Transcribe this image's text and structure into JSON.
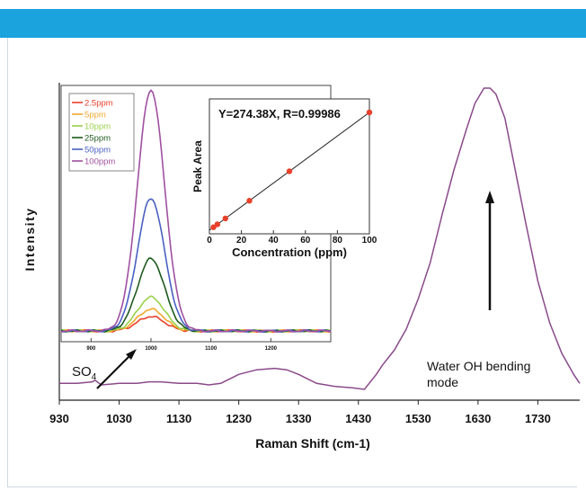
{
  "chart_data": [
    {
      "type": "line",
      "title": "",
      "xlabel": "Raman Shift (cm-1)",
      "ylabel": "Intensity",
      "xlim": [
        930,
        1800
      ],
      "ylim": [
        0,
        1
      ],
      "x_ticks": [
        930,
        1030,
        1130,
        1230,
        1330,
        1430,
        1530,
        1630,
        1730
      ],
      "series": [
        {
          "color": "#8a4a8a",
          "x": [
            930,
            960,
            985,
            990,
            1000,
            1030,
            1060,
            1080,
            1100,
            1130,
            1160,
            1180,
            1200,
            1230,
            1260,
            1290,
            1310,
            1330,
            1360,
            1390,
            1420,
            1440,
            1460,
            1470,
            1490,
            1510,
            1530,
            1550,
            1570,
            1590,
            1610,
            1625,
            1640,
            1650,
            1660,
            1675,
            1690,
            1710,
            1730,
            1750,
            1770,
            1790,
            1800
          ],
          "y": [
            0.02,
            0.02,
            0.025,
            0.03,
            0.015,
            0.02,
            0.02,
            0.025,
            0.025,
            0.02,
            0.02,
            0.015,
            0.02,
            0.05,
            0.065,
            0.07,
            0.065,
            0.05,
            0.02,
            0.01,
            0.005,
            0.0,
            0.05,
            0.08,
            0.13,
            0.2,
            0.3,
            0.42,
            0.58,
            0.73,
            0.86,
            0.95,
            1.0,
            1.0,
            0.98,
            0.9,
            0.75,
            0.55,
            0.36,
            0.22,
            0.12,
            0.05,
            0.02
          ]
        }
      ],
      "annotations": [
        {
          "text": "SO",
          "subscript": "4",
          "x": 995,
          "y": 0.02
        },
        {
          "text": "Water OH bending",
          "x": 1640,
          "y": 0.45
        },
        {
          "text": "mode",
          "x": 1640,
          "y": 0.45
        }
      ]
    },
    {
      "type": "line",
      "title": "",
      "xlabel": "",
      "ylabel": "",
      "xlim": [
        850,
        1300
      ],
      "legend_position": "top-left",
      "x_ticks": [
        900,
        1000,
        1100,
        1200
      ],
      "x_tick_labels": [
        "900",
        "1000",
        "1100",
        "1200"
      ],
      "series": [
        {
          "name": "2.5ppm",
          "color": "#e8402a",
          "peak": 0.06
        },
        {
          "name": "5ppm",
          "color": "#f0a830",
          "peak": 0.09
        },
        {
          "name": "10ppm",
          "color": "#9ad04a",
          "peak": 0.14
        },
        {
          "name": "25ppm",
          "color": "#1e5a1e",
          "peak": 0.3
        },
        {
          "name": "50ppm",
          "color": "#4a60c0",
          "peak": 0.55
        },
        {
          "name": "100ppm",
          "color": "#a050a0",
          "peak": 1.0
        }
      ],
      "peak_center": 1000,
      "peak_width": 32
    },
    {
      "type": "scatter",
      "title": "Y=274.38X, R=0.99986",
      "xlabel": "Concentration (ppm)",
      "ylabel": "Peak Area",
      "xlim": [
        0,
        100
      ],
      "ylim": [
        0,
        100
      ],
      "x_ticks": [
        0,
        20,
        40,
        60,
        80,
        100
      ],
      "fit_line": {
        "slope": 1.0,
        "intercept": 0
      },
      "points": {
        "x": [
          2.5,
          5,
          10,
          25,
          50,
          100
        ],
        "y": [
          2.5,
          5,
          10,
          25,
          50,
          100
        ]
      },
      "colors": {
        "points": "#e8402a",
        "line": "#222222"
      }
    }
  ]
}
